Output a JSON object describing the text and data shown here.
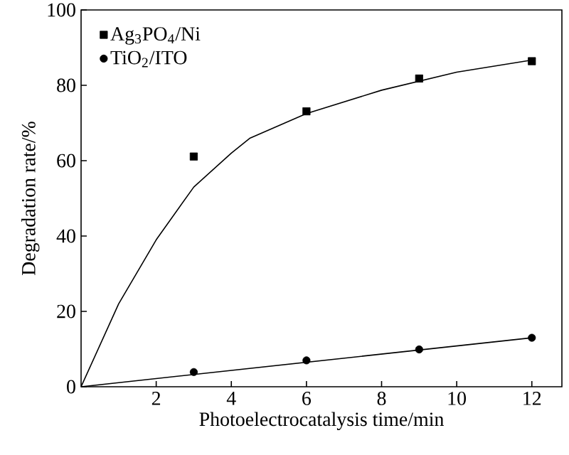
{
  "chart_data": {
    "type": "scatter",
    "xlabel": "Photoelectrocatalysis time/min",
    "ylabel": "Degradation rate/%",
    "xlim": [
      0,
      12.8
    ],
    "ylim": [
      0,
      100
    ],
    "xticks": [
      2,
      4,
      6,
      8,
      10,
      12
    ],
    "yticks": [
      0,
      20,
      40,
      60,
      80,
      100
    ],
    "grid": false,
    "legend": "top left",
    "series": [
      {
        "name": "Ag$_{3}$PO$_{4}$/Ni",
        "marker": "square",
        "color": "#000000",
        "x": [
          3,
          6,
          9,
          12
        ],
        "values": [
          61.1,
          73.1,
          81.8,
          86.4
        ]
      },
      {
        "name": "TiO$_{2}$/ITO",
        "marker": "circle",
        "color": "#000000",
        "x": [
          3,
          6,
          9,
          12
        ],
        "values": [
          3.9,
          7.0,
          9.9,
          13.0
        ]
      },
      {
        "type": "line",
        "marker": "none",
        "color": "#000000",
        "x": [
          0,
          1,
          2,
          3,
          4,
          4.5,
          6,
          8,
          10,
          12
        ],
        "values": [
          0,
          22,
          39,
          53,
          62,
          66,
          72.5,
          78.7,
          83.5,
          86.7
        ]
      },
      {
        "type": "line",
        "marker": "none",
        "color": "#000000",
        "x": [
          0,
          12
        ],
        "values": [
          0,
          13
        ]
      }
    ]
  }
}
